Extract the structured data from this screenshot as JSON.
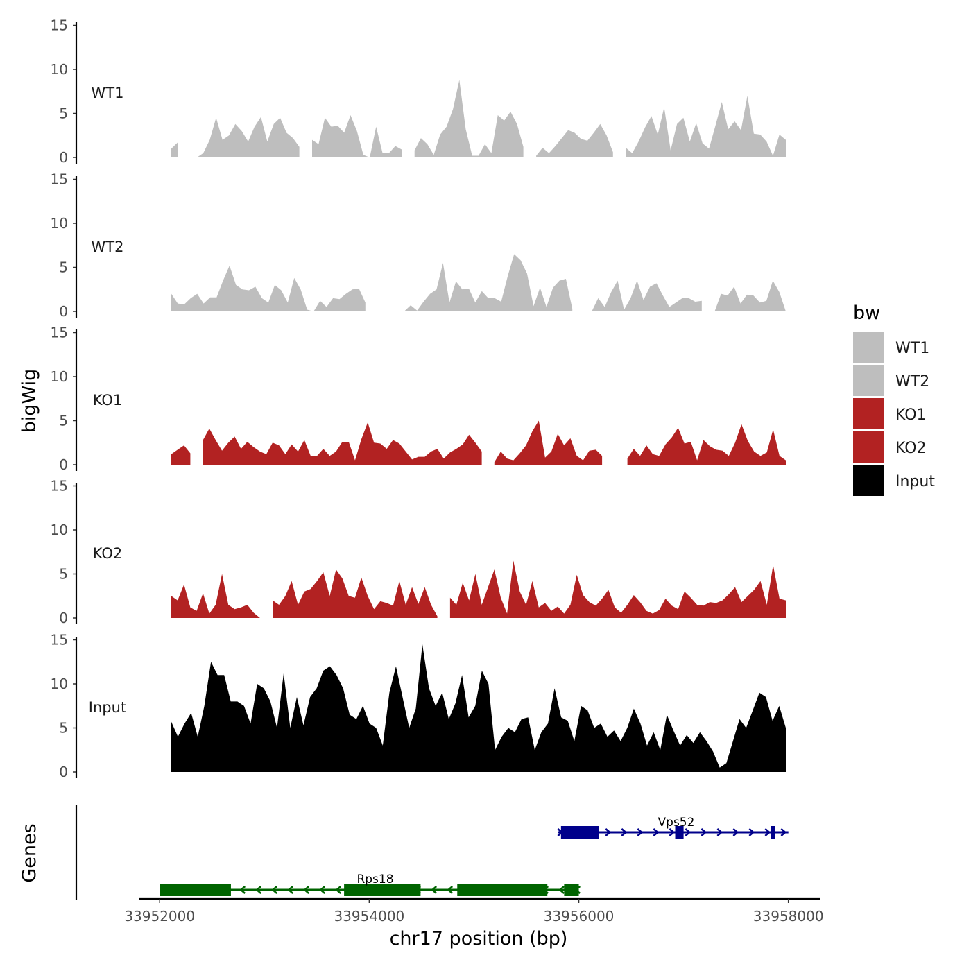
{
  "chart_data": {
    "type": "area",
    "title": "",
    "ylabel": "bigWig",
    "xlabel": "chr17 position (bp)",
    "xlim": [
      33951800,
      33958300
    ],
    "ylim": [
      0,
      15
    ],
    "yticks": [
      0,
      5,
      10,
      15
    ],
    "xticks": [
      "33952000",
      "33954000",
      "33956000",
      "33958000"
    ],
    "xtick_values": [
      33952000,
      33954000,
      33956000,
      33958000
    ],
    "x_start": 33952000,
    "x_end": 33958000,
    "series": [
      {
        "name": "WT1",
        "color": "#bebebe",
        "values": [
          1,
          1.7,
          0.8,
          0,
          0,
          0.5,
          2,
          4.5,
          2,
          2.5,
          3.8,
          3,
          1.8,
          3.5,
          4.6,
          1.8,
          3.8,
          4.5,
          2.8,
          2.2,
          1.2,
          0,
          2,
          1.5,
          4.5,
          3.5,
          3.6,
          2.8,
          4.8,
          3,
          0.3,
          0,
          3.5,
          0.5,
          0.5,
          1.3,
          0.9,
          0,
          0.8,
          2.2,
          1.5,
          0.3,
          2.6,
          3.5,
          5.5,
          8.8,
          3.2,
          0.2,
          0.2,
          1.5,
          0.5,
          4.8,
          4.2,
          5.2,
          3.8,
          1.2,
          0,
          0.2,
          1.1,
          0.5,
          1.3,
          2.2,
          3.1,
          2.8,
          2.1,
          1.9,
          2.8,
          3.8,
          2.5,
          0.6,
          0,
          1.1,
          0.5,
          1.8,
          3.4,
          4.7,
          2.6,
          5.7,
          0.8,
          3.8,
          4.5,
          1.8,
          3.9,
          1.6,
          1,
          3.6,
          6.3,
          3.2,
          4.1,
          3.1,
          7,
          2.7,
          2.6,
          1.8,
          0.2,
          2.6,
          2
        ],
        "gaps": [
          [
            2,
            3
          ],
          [
            21,
            21
          ],
          [
            37,
            37
          ],
          [
            56,
            56
          ],
          [
            70,
            70
          ]
        ]
      },
      {
        "name": "WT2",
        "color": "#bebebe",
        "values": [
          2,
          0.9,
          0.8,
          1.5,
          2,
          0.9,
          1.6,
          1.6,
          3.5,
          5.2,
          3,
          2.5,
          2.4,
          2.8,
          1.5,
          1,
          3,
          2.4,
          1,
          3.8,
          2.5,
          0.2,
          0,
          1.2,
          0.5,
          1.5,
          1.4,
          2,
          2.5,
          2.6,
          1,
          0.3,
          0.7,
          0,
          0,
          0,
          0,
          0.7,
          0.1,
          1.1,
          2,
          2.5,
          5.5,
          1,
          3.4,
          2.5,
          2.6,
          1,
          2.3,
          1.5,
          1.5,
          1.1,
          4,
          6.5,
          5.8,
          4.3,
          0.6,
          2.7,
          0.5,
          2.7,
          3.5,
          3.7,
          0.3,
          1.2,
          0,
          0,
          1.5,
          0.5,
          2.2,
          3.5,
          0.2,
          1.5,
          3.5,
          1.3,
          2.8,
          3.2,
          1.8,
          0.5,
          1,
          1.5,
          1.5,
          1.1,
          1.2,
          0.3,
          0,
          2,
          1.8,
          2.8,
          0.9,
          1.9,
          1.8,
          1,
          1.2,
          3.5,
          2.2,
          0
        ],
        "gaps": [
          [
            31,
            32
          ],
          [
            35,
            35
          ],
          [
            63,
            63
          ],
          [
            83,
            83
          ]
        ]
      },
      {
        "name": "KO1",
        "color": "#b22222",
        "values": [
          1.2,
          1.7,
          2.2,
          1.3,
          0,
          2.8,
          4.1,
          2.8,
          1.6,
          2.5,
          3.2,
          1.8,
          2.6,
          2,
          1.5,
          1.2,
          2.5,
          2.2,
          1.2,
          2.3,
          1.5,
          2.8,
          1,
          1,
          1.8,
          1,
          1.5,
          2.6,
          2.6,
          0.5,
          2.9,
          4.8,
          2.5,
          2.4,
          1.8,
          2.8,
          2.4,
          1.5,
          0.6,
          0.9,
          0.9,
          1.5,
          1.8,
          0.7,
          1.4,
          1.8,
          2.3,
          3.4,
          2.5,
          1.5,
          0,
          0.3,
          1.5,
          0.7,
          0.5,
          1.3,
          2.2,
          3.8,
          5,
          0.8,
          1.5,
          3.5,
          2.2,
          3,
          1,
          0.5,
          1.6,
          1.7,
          1,
          0,
          0,
          0,
          0.7,
          1.8,
          1,
          2.2,
          1.2,
          1,
          2.3,
          3.1,
          4.2,
          2.4,
          2.6,
          0.5,
          2.8,
          2.1,
          1.7,
          1.6,
          1,
          2.5,
          4.6,
          2.7,
          1.5,
          1,
          1.4,
          4,
          1,
          0.5
        ],
        "gaps": [
          [
            4,
            4
          ],
          [
            50,
            50
          ],
          [
            69,
            71
          ]
        ]
      },
      {
        "name": "KO2",
        "color": "#b22222",
        "values": [
          2.5,
          2,
          3.8,
          1.2,
          0.8,
          2.8,
          0.5,
          1.5,
          5,
          1.5,
          1,
          1.2,
          1.5,
          0.6,
          0,
          0,
          2,
          1.5,
          2.5,
          4.2,
          1.5,
          3,
          3.3,
          4.2,
          5.2,
          2.5,
          5.5,
          4.5,
          2.5,
          2.3,
          4.6,
          2.5,
          1,
          1.9,
          1.7,
          1.4,
          4.2,
          1.5,
          3.5,
          1.6,
          3.5,
          1.5,
          0.2,
          0,
          2.3,
          1.5,
          4,
          2,
          5,
          1.5,
          3.5,
          5.5,
          2.3,
          0.5,
          6.5,
          3,
          1.5,
          4.2,
          1.2,
          1.7,
          0.8,
          1.3,
          0.5,
          1.5,
          4.9,
          2.6,
          1.8,
          1.4,
          2.2,
          3.2,
          1.2,
          0.6,
          1.5,
          2.6,
          1.8,
          0.8,
          0.5,
          0.9,
          2.2,
          1.4,
          1,
          3,
          2.3,
          1.5,
          1.4,
          1.8,
          1.7,
          2,
          2.7,
          3.5,
          1.8,
          2.5,
          3.2,
          4.2,
          1.5,
          6,
          2.2,
          2
        ],
        "gaps": [
          [
            15,
            15
          ],
          [
            43,
            43
          ]
        ]
      },
      {
        "name": "Input",
        "color": "#000000",
        "values": [
          5.7,
          4,
          5.5,
          6.7,
          4,
          7.5,
          12.5,
          11,
          11,
          8,
          8,
          7.5,
          5.5,
          10,
          9.5,
          8,
          5,
          11.2,
          5,
          8.5,
          5.3,
          8.5,
          9.5,
          11.5,
          12,
          11,
          9.5,
          6.5,
          6,
          7.5,
          5.5,
          5,
          3,
          9,
          12,
          8.5,
          5,
          7.2,
          14.5,
          9.5,
          7.5,
          9,
          6,
          7.8,
          11,
          6.2,
          7.5,
          11.5,
          10,
          2.5,
          4,
          5,
          4.5,
          6,
          6.2,
          2.5,
          4.5,
          5.5,
          9.5,
          6.2,
          5.8,
          3.5,
          7.5,
          7,
          5,
          5.5,
          4,
          4.7,
          3.5,
          5,
          7.2,
          5.5,
          3,
          4.5,
          2.5,
          6.5,
          4.7,
          3,
          4.2,
          3.3,
          4.5,
          3.5,
          2.3,
          0.5,
          1,
          3.5,
          6,
          5,
          7,
          9,
          8.5,
          5.8,
          7.5,
          5
        ],
        "gaps": []
      }
    ],
    "genes": [
      {
        "name": "Vps52",
        "strand": "+",
        "color": "#00008b",
        "start": 33955800,
        "end": 33958000,
        "exons": [
          [
            33955830,
            33956190
          ],
          [
            33956920,
            33957000
          ],
          [
            33957830,
            33957870
          ]
        ]
      },
      {
        "name": "Rps18",
        "strand": "-",
        "color": "#006400",
        "start": 33952000,
        "end": 33956000,
        "exons": [
          [
            33952000,
            33952680
          ],
          [
            33953760,
            33954490
          ],
          [
            33954840,
            33955700
          ],
          [
            33955860,
            33956000
          ]
        ]
      }
    ],
    "legend": {
      "title": "bw",
      "position": "right",
      "entries": [
        {
          "label": "WT1",
          "color": "#bebebe"
        },
        {
          "label": "WT2",
          "color": "#bebebe"
        },
        {
          "label": "KO1",
          "color": "#b22222"
        },
        {
          "label": "KO2",
          "color": "#b22222"
        },
        {
          "label": "Input",
          "color": "#000000"
        }
      ]
    },
    "gene_panel_label": "Genes"
  }
}
